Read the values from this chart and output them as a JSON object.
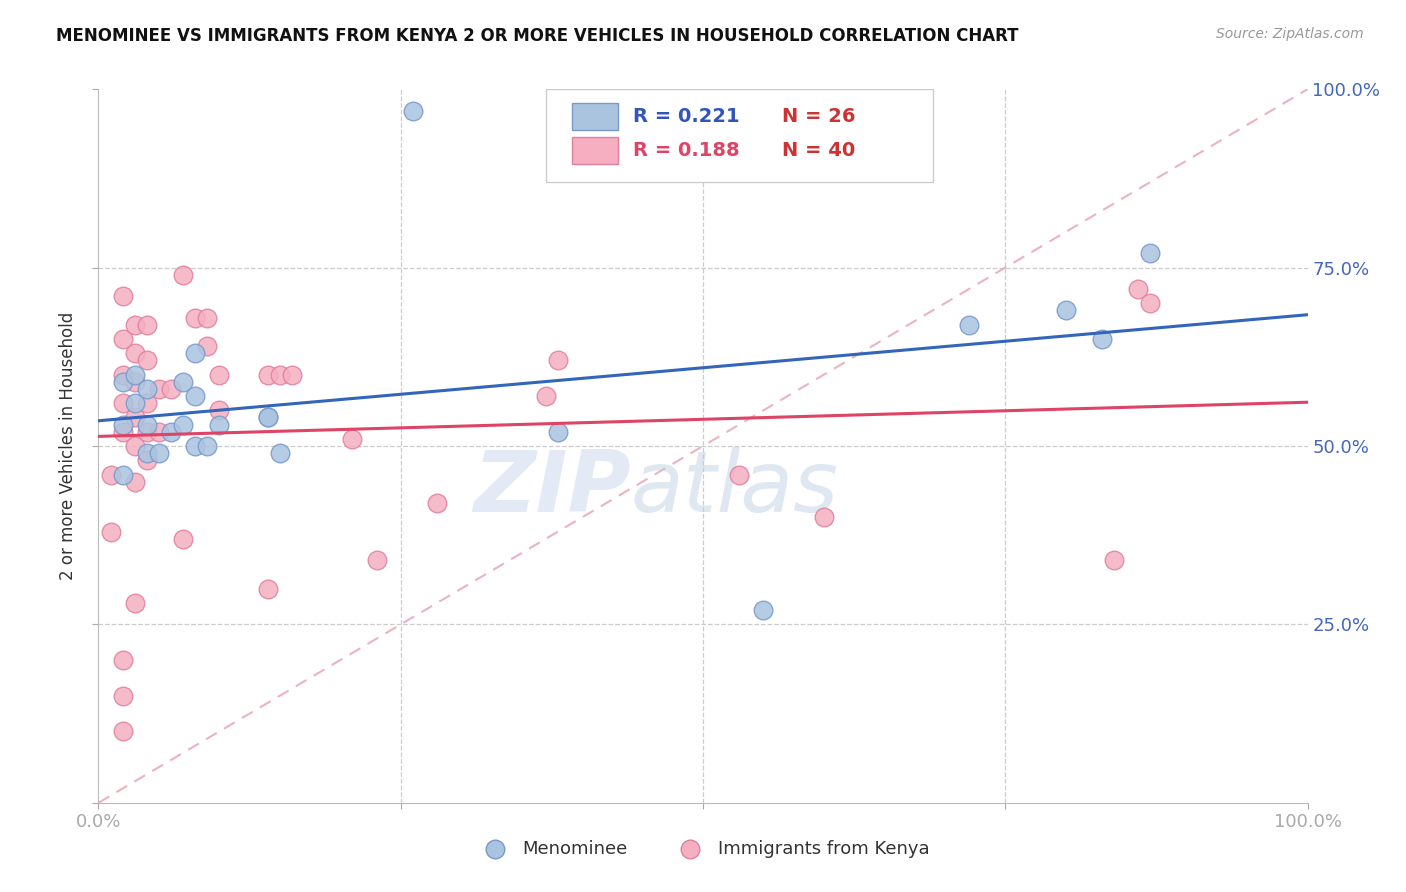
{
  "title": "MENOMINEE VS IMMIGRANTS FROM KENYA 2 OR MORE VEHICLES IN HOUSEHOLD CORRELATION CHART",
  "source_text": "Source: ZipAtlas.com",
  "ylabel": "2 or more Vehicles in Household",
  "xlim": [
    0.0,
    1.0
  ],
  "ylim": [
    0.0,
    1.0
  ],
  "menominee_color": "#aac4e0",
  "kenya_color": "#f5afc0",
  "menominee_edge": "#7799cc",
  "kenya_edge": "#e080a0",
  "line_blue": "#3366bb",
  "line_pink": "#dd4466",
  "ref_line_color": "#e8a0b0",
  "R_menominee": 0.221,
  "N_menominee": 26,
  "R_kenya": 0.188,
  "N_kenya": 40,
  "legend_label_1": "Menominee",
  "legend_label_2": "Immigrants from Kenya",
  "watermark_zip": "ZIP",
  "watermark_atlas": "atlas",
  "menominee_x": [
    0.02,
    0.02,
    0.02,
    0.03,
    0.03,
    0.04,
    0.04,
    0.04,
    0.05,
    0.06,
    0.07,
    0.07,
    0.08,
    0.08,
    0.08,
    0.09,
    0.1,
    0.14,
    0.14,
    0.15,
    0.38,
    0.55,
    0.72,
    0.8,
    0.83,
    0.87
  ],
  "menominee_y": [
    0.46,
    0.53,
    0.59,
    0.6,
    0.56,
    0.58,
    0.53,
    0.49,
    0.49,
    0.52,
    0.59,
    0.53,
    0.5,
    0.57,
    0.63,
    0.5,
    0.53,
    0.54,
    0.54,
    0.49,
    0.52,
    0.27,
    0.67,
    0.69,
    0.65,
    0.77
  ],
  "menominee_outlier_x": [
    0.26
  ],
  "menominee_outlier_y": [
    0.97
  ],
  "kenya_x": [
    0.01,
    0.01,
    0.02,
    0.02,
    0.02,
    0.02,
    0.02,
    0.03,
    0.03,
    0.03,
    0.03,
    0.03,
    0.03,
    0.04,
    0.04,
    0.04,
    0.04,
    0.04,
    0.05,
    0.05,
    0.06,
    0.07,
    0.08,
    0.09,
    0.09,
    0.1,
    0.1,
    0.14,
    0.15,
    0.16,
    0.21,
    0.23,
    0.28,
    0.37,
    0.38,
    0.53,
    0.6,
    0.84,
    0.86,
    0.87
  ],
  "kenya_y": [
    0.38,
    0.46,
    0.52,
    0.56,
    0.6,
    0.65,
    0.71,
    0.45,
    0.5,
    0.54,
    0.59,
    0.63,
    0.67,
    0.48,
    0.52,
    0.56,
    0.62,
    0.67,
    0.52,
    0.58,
    0.58,
    0.74,
    0.68,
    0.64,
    0.68,
    0.55,
    0.6,
    0.6,
    0.6,
    0.6,
    0.51,
    0.34,
    0.42,
    0.57,
    0.62,
    0.46,
    0.4,
    0.34,
    0.72,
    0.7
  ],
  "kenya_outlier_x": [
    0.02,
    0.02,
    0.02,
    0.03,
    0.07,
    0.14
  ],
  "kenya_outlier_y": [
    0.1,
    0.15,
    0.2,
    0.28,
    0.37,
    0.3
  ]
}
